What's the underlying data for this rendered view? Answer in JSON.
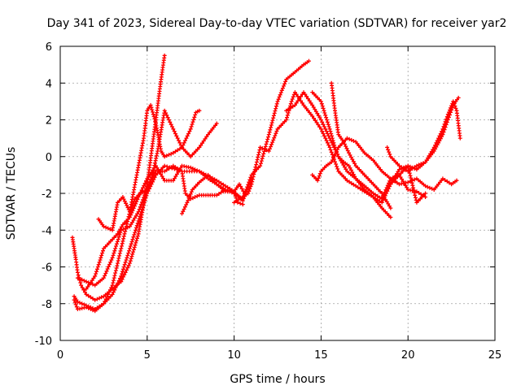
{
  "chart_data": {
    "type": "scatter",
    "title": "Day 341 of 2023, Sidereal Day-to-day VTEC variation (SDTVAR) for receiver yar2",
    "xlabel": "GPS time / hours",
    "ylabel": "SDTVAR / TECUs",
    "xlim": [
      0,
      25
    ],
    "ylim": [
      -10,
      6
    ],
    "x_ticks": [
      "0",
      "5",
      "10",
      "15",
      "20",
      "25"
    ],
    "y_ticks": [
      "-10",
      "-8",
      "-6",
      "-4",
      "-2",
      "0",
      "2",
      "4",
      "6"
    ],
    "x_tick_values": [
      0,
      5,
      10,
      15,
      20,
      25
    ],
    "y_tick_values": [
      -10,
      -8,
      -6,
      -4,
      -2,
      0,
      2,
      4,
      6
    ],
    "grid": true,
    "marker": "+",
    "color": "#ff0000",
    "series": [
      {
        "x": [
          0.7,
          0.8,
          0.9,
          1.0,
          1.2,
          1.5,
          2.0,
          2.5,
          3.0,
          3.5,
          4.0,
          4.5,
          5.0,
          5.5,
          5.8,
          6.0
        ],
        "y": [
          -4.4,
          -5.0,
          -5.6,
          -6.3,
          -7.0,
          -7.5,
          -7.8,
          -7.6,
          -7.2,
          -6.8,
          -5.8,
          -4.2,
          -1.5,
          2.0,
          4.2,
          5.5
        ]
      },
      {
        "x": [
          0.8,
          1.0,
          1.5,
          2.0,
          2.5,
          3.0,
          3.5,
          4.0,
          4.4,
          4.8,
          5.0,
          5.2,
          5.5,
          5.8,
          6.0,
          6.5,
          7.0,
          7.5,
          7.8,
          8.0
        ],
        "y": [
          -7.6,
          -7.9,
          -8.1,
          -8.3,
          -8.0,
          -7.0,
          -5.0,
          -3.0,
          -1.0,
          1.0,
          2.5,
          2.8,
          1.8,
          0.3,
          0.0,
          0.2,
          0.5,
          1.5,
          2.4,
          2.5
        ]
      },
      {
        "x": [
          0.8,
          1.0,
          1.5,
          2.0,
          2.5,
          3.0,
          3.5,
          4.0,
          4.5,
          5.0,
          5.5,
          6.0,
          7.0,
          8.0,
          9.0,
          10.0,
          10.5,
          11.0
        ],
        "y": [
          -7.8,
          -8.3,
          -8.2,
          -8.4,
          -8.0,
          -7.5,
          -6.5,
          -5.0,
          -3.5,
          -2.0,
          -1.0,
          -0.5,
          -0.8,
          -0.8,
          -1.3,
          -1.9,
          -2.4,
          -1.2
        ]
      },
      {
        "x": [
          1.0,
          1.5,
          2.0,
          2.5,
          3.0,
          3.5,
          4.0,
          4.5,
          5.0,
          5.5,
          6.0,
          6.5,
          7.0,
          7.2,
          7.5,
          8.0,
          8.5,
          9.0,
          9.5,
          10.0,
          10.2,
          10.5
        ],
        "y": [
          -6.6,
          -6.8,
          -7.0,
          -6.6,
          -5.5,
          -4.0,
          -3.8,
          -3.0,
          -1.7,
          -0.8,
          -0.8,
          -0.5,
          -0.8,
          -2.0,
          -2.3,
          -2.1,
          -2.1,
          -2.1,
          -1.8,
          -1.9,
          -2.5,
          -2.6
        ]
      },
      {
        "x": [
          2.2,
          2.5,
          3.0,
          3.3,
          3.6,
          4.0,
          4.3,
          4.6,
          5.0,
          5.3,
          5.6,
          6.0,
          6.5,
          7.0,
          7.5,
          8.0,
          8.5,
          9.0
        ],
        "y": [
          -3.4,
          -3.8,
          -4.0,
          -2.5,
          -2.2,
          -3.0,
          -2.3,
          -2.0,
          -1.8,
          -1.0,
          0.3,
          2.5,
          1.5,
          0.5,
          0.0,
          0.5,
          1.2,
          1.8
        ]
      },
      {
        "x": [
          1.5,
          2.0,
          2.5,
          3.0,
          3.3,
          3.6,
          4.0,
          4.5,
          5.0,
          5.5,
          6.0,
          6.5,
          7.0,
          7.5,
          8.0,
          8.5,
          9.0,
          9.5,
          10.0,
          10.5,
          11.0,
          11.5,
          12.0,
          12.5,
          13.0,
          13.5,
          14.0,
          14.3
        ],
        "y": [
          -7.2,
          -6.5,
          -5.0,
          -4.5,
          -4.2,
          -3.7,
          -3.3,
          -2.2,
          -1.2,
          -0.5,
          -1.3,
          -1.3,
          -0.5,
          -0.6,
          -0.8,
          -1.2,
          -1.5,
          -1.8,
          -2.0,
          -2.3,
          -1.0,
          -0.5,
          1.2,
          3.0,
          4.2,
          4.6,
          5.0,
          5.2
        ]
      },
      {
        "x": [
          10.0,
          10.5,
          10.8,
          11.0,
          11.5,
          12.0,
          12.5,
          13.0,
          13.3,
          13.5,
          14.0,
          14.5,
          15.0,
          15.5,
          16.0,
          16.5,
          17.0,
          17.5,
          18.0,
          18.5,
          19.0,
          19.5,
          20.0,
          20.5,
          21.0
        ],
        "y": [
          -2.5,
          -2.2,
          -2.0,
          -1.5,
          0.5,
          0.3,
          1.5,
          2.0,
          3.0,
          3.5,
          2.8,
          2.2,
          1.5,
          0.5,
          -0.8,
          -1.3,
          -1.6,
          -1.9,
          -2.2,
          -2.5,
          -1.5,
          -0.7,
          -0.5,
          -2.5,
          -2.0
        ]
      },
      {
        "x": [
          7.0,
          7.3,
          7.6,
          8.0,
          8.5,
          9.0,
          9.5,
          10.0,
          10.3,
          10.6
        ],
        "y": [
          -3.1,
          -2.5,
          -1.8,
          -1.4,
          -1.0,
          -1.5,
          -1.9,
          -1.9,
          -1.5,
          -2.0
        ]
      },
      {
        "x": [
          13.0,
          13.5,
          14.0,
          14.5,
          15.0,
          15.5,
          16.0,
          16.5,
          17.0,
          17.5,
          18.0,
          18.5,
          19.0,
          19.5,
          20.0,
          20.5,
          21.0
        ],
        "y": [
          2.5,
          2.8,
          3.5,
          2.8,
          2.0,
          1.0,
          0.0,
          -0.8,
          -1.2,
          -1.6,
          -2.0,
          -2.3,
          -1.2,
          -1.0,
          -1.8,
          -1.9,
          -2.2
        ]
      },
      {
        "x": [
          14.5,
          15.0,
          15.5,
          15.8,
          16.0,
          16.3,
          16.6,
          17.0,
          17.5,
          18.0,
          18.5,
          19.0
        ],
        "y": [
          3.5,
          3.0,
          1.5,
          0.5,
          0.0,
          -0.3,
          -0.5,
          -1.2,
          -1.8,
          -2.2,
          -2.8,
          -3.3
        ]
      },
      {
        "x": [
          14.5,
          14.8,
          15.0,
          15.3,
          15.6,
          16.0,
          16.5,
          17.0,
          17.5,
          18.0,
          18.5,
          19.0,
          19.5,
          20.0,
          20.5,
          21.0,
          21.5,
          22.0,
          22.5,
          22.8
        ],
        "y": [
          -1.0,
          -1.3,
          -0.8,
          -0.5,
          -0.3,
          0.5,
          1.0,
          0.8,
          0.2,
          -0.2,
          -0.8,
          -1.2,
          -1.5,
          -1.4,
          -1.2,
          -1.6,
          -1.8,
          -1.2,
          -1.5,
          -1.3
        ]
      },
      {
        "x": [
          15.6,
          15.8,
          16.0,
          16.3,
          16.6,
          17.0,
          17.5,
          18.0,
          18.5,
          19.0
        ],
        "y": [
          4.0,
          2.5,
          1.2,
          0.8,
          0.2,
          -0.5,
          -1.0,
          -1.5,
          -2.0,
          -2.8
        ]
      },
      {
        "x": [
          18.8,
          19.0,
          19.5,
          20.0,
          20.5,
          21.0,
          21.5,
          22.0,
          22.3,
          22.6,
          22.8,
          23.0
        ],
        "y": [
          0.5,
          0.0,
          -0.5,
          -0.8,
          -0.5,
          -0.3,
          0.5,
          1.5,
          2.3,
          3.0,
          2.5,
          1.0
        ]
      },
      {
        "x": [
          19.0,
          19.5,
          20.0,
          20.5,
          21.0,
          21.5,
          22.0,
          22.3,
          22.6,
          22.9
        ],
        "y": [
          -1.5,
          -1.0,
          -0.5,
          -0.7,
          -0.3,
          0.3,
          1.2,
          2.0,
          2.8,
          3.2
        ]
      }
    ]
  }
}
